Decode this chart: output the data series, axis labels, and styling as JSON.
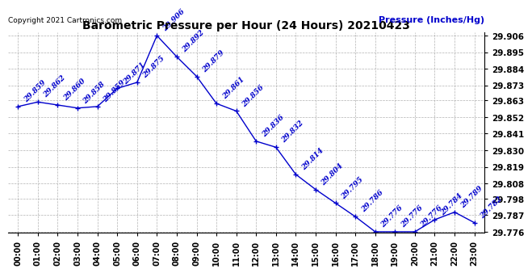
{
  "title": "Barometric Pressure per Hour (24 Hours) 20210423",
  "copyright_text": "Copyright 2021 Cartronics.com",
  "ylabel": "Pressure (Inches/Hg)",
  "hours": [
    "00:00",
    "01:00",
    "02:00",
    "03:00",
    "04:00",
    "05:00",
    "06:00",
    "07:00",
    "08:00",
    "09:00",
    "10:00",
    "11:00",
    "12:00",
    "13:00",
    "14:00",
    "15:00",
    "16:00",
    "17:00",
    "18:00",
    "19:00",
    "20:00",
    "21:00",
    "22:00",
    "23:00"
  ],
  "values": [
    29.859,
    29.862,
    29.86,
    29.858,
    29.859,
    29.871,
    29.875,
    29.906,
    29.892,
    29.879,
    29.861,
    29.856,
    29.836,
    29.832,
    29.814,
    29.804,
    29.795,
    29.786,
    29.776,
    29.776,
    29.776,
    29.784,
    29.789,
    29.782
  ],
  "line_color": "#0000cc",
  "marker_color": "#0000cc",
  "bg_color": "#ffffff",
  "grid_color": "#aaaaaa",
  "title_color": "#000000",
  "ylabel_color": "#0000cc",
  "copyright_color": "#000000",
  "tick_color": "#000000",
  "ylim_min": 29.776,
  "ylim_max": 29.906,
  "yticks": [
    29.776,
    29.787,
    29.798,
    29.808,
    29.819,
    29.83,
    29.841,
    29.852,
    29.863,
    29.873,
    29.884,
    29.895,
    29.906
  ],
  "annotation_color": "#0000cc",
  "annotation_fontsize": 6.5,
  "title_fontsize": 10,
  "copyright_fontsize": 6.5,
  "ylabel_fontsize": 8,
  "xtick_fontsize": 7,
  "ytick_fontsize": 7.5
}
